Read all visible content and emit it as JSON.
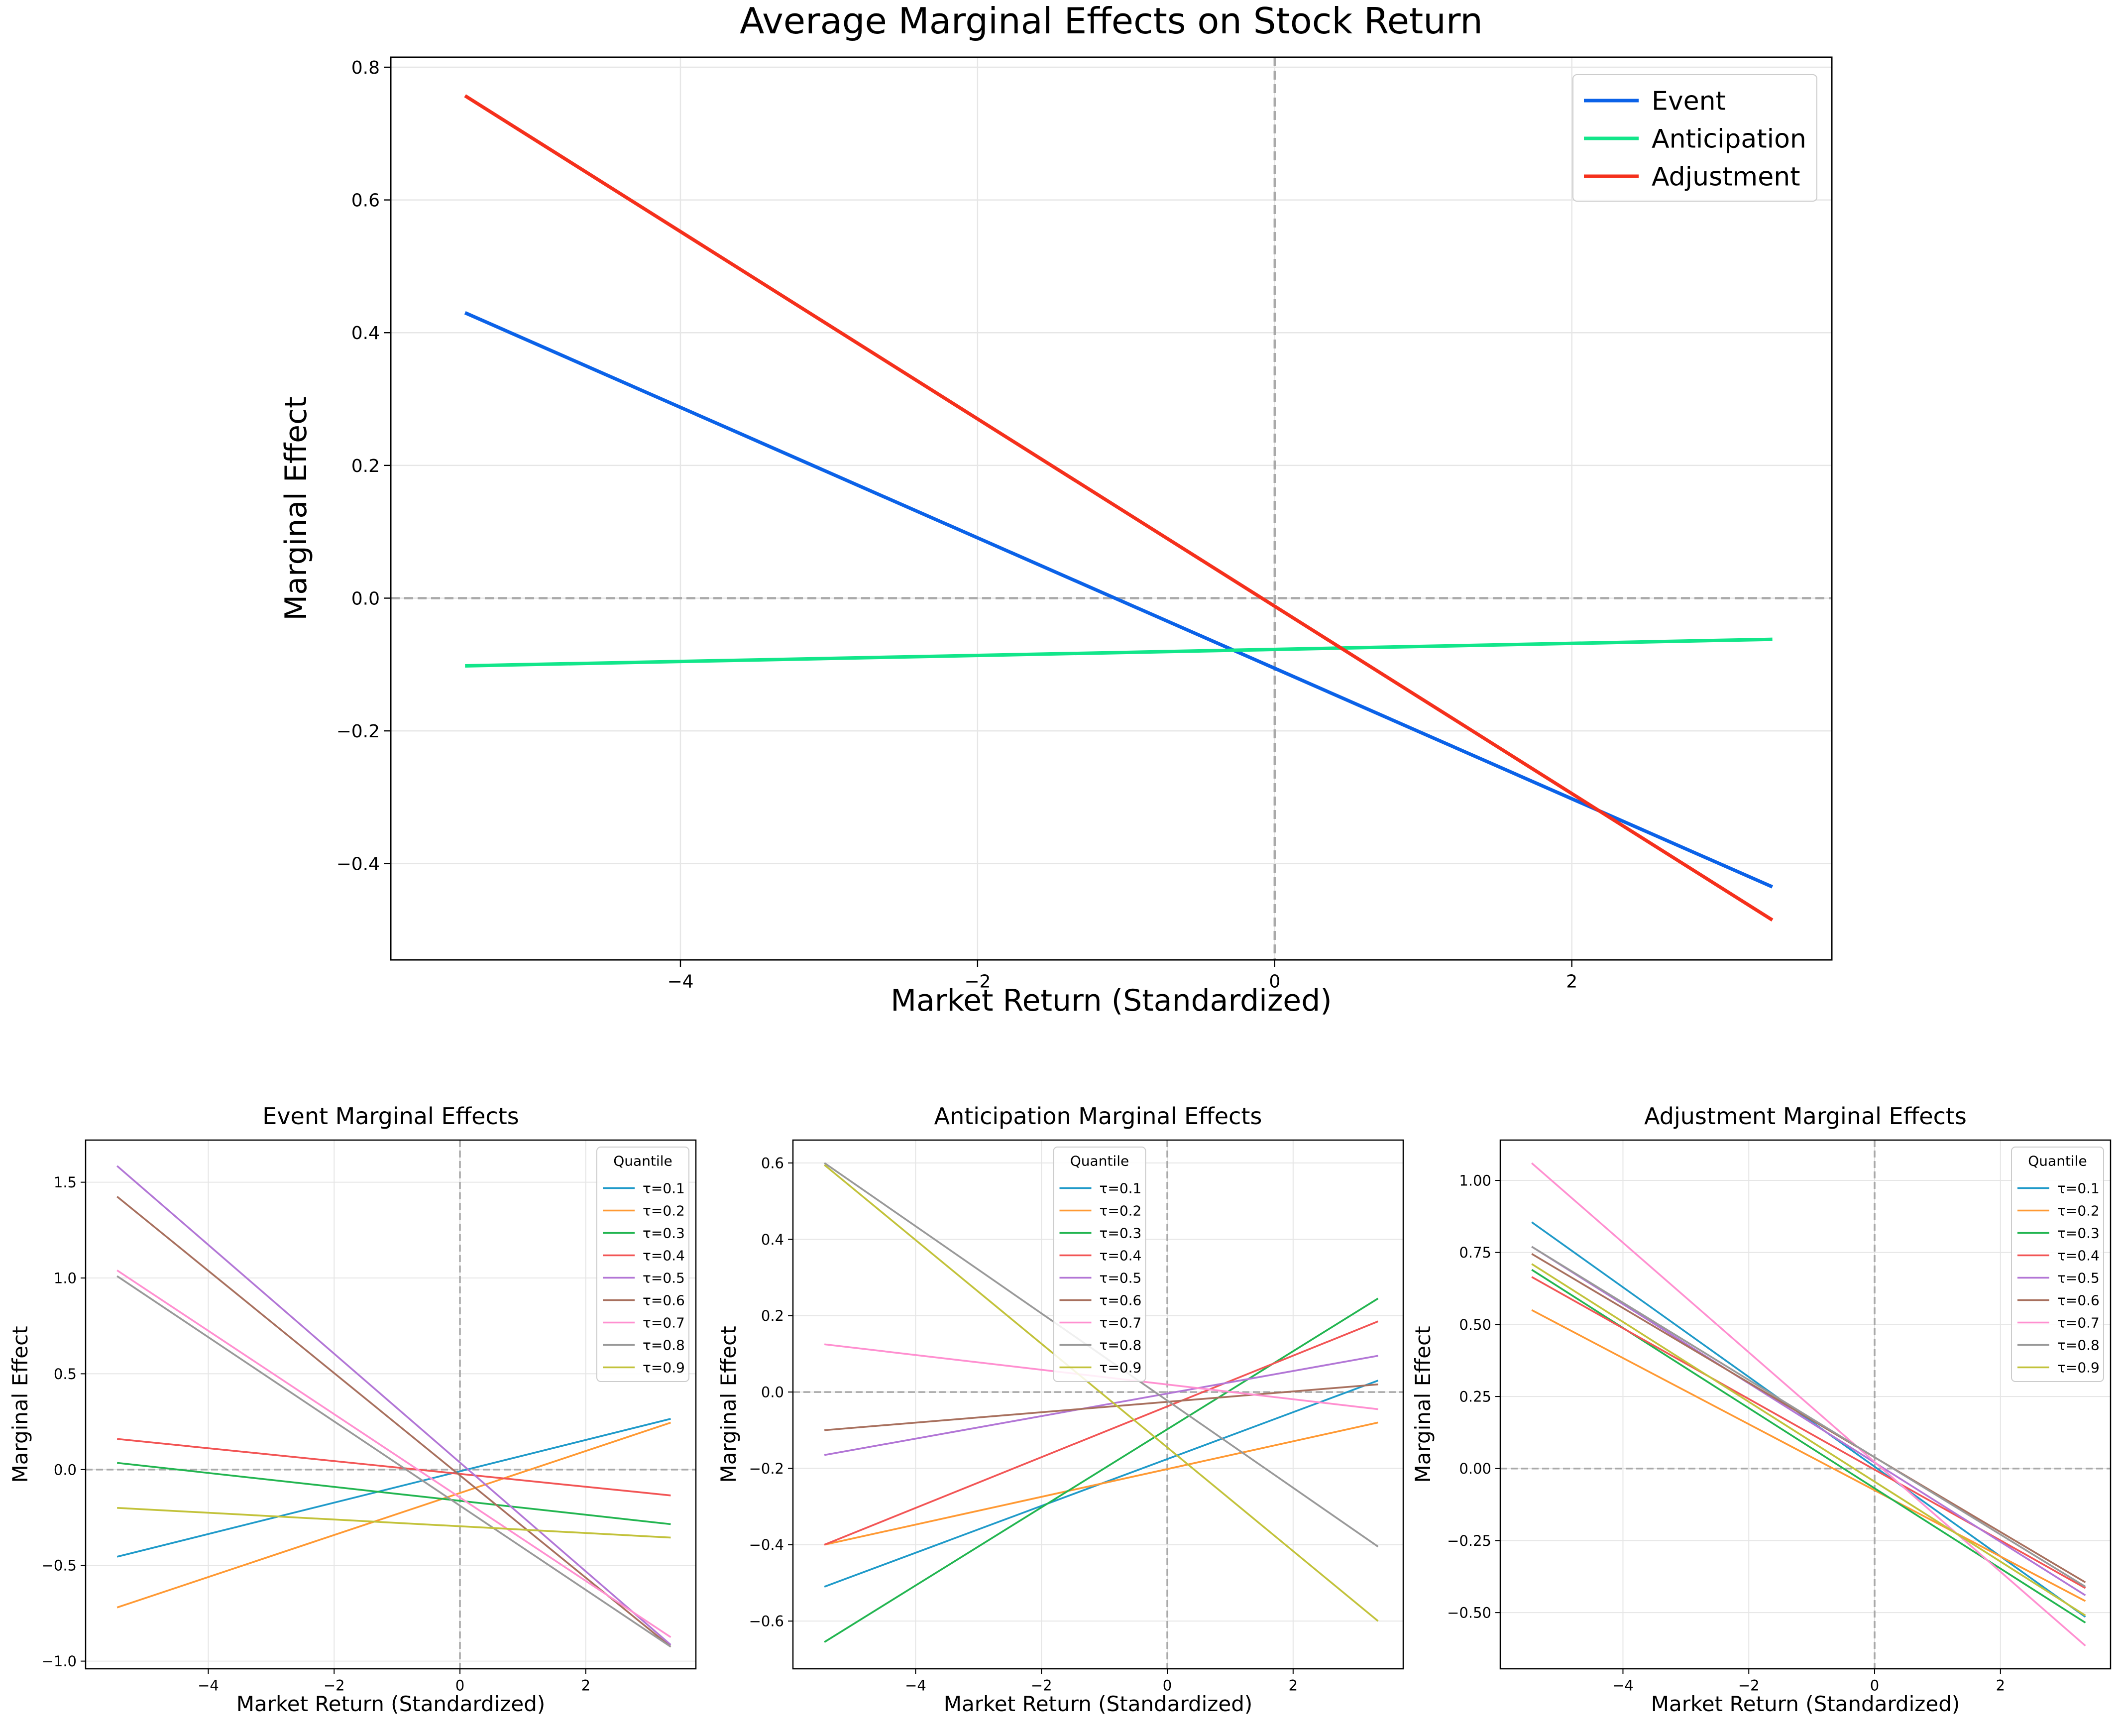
{
  "chart_data": [
    {
      "type": "line",
      "title": "Average Marginal Effects on Stock Return",
      "xlabel": "Market Return (Standardized)",
      "ylabel": "Marginal Effect",
      "xlim": [
        -5.95,
        3.75
      ],
      "ylim": [
        -0.545,
        0.815
      ],
      "xticks": [
        -4,
        -2,
        0,
        2
      ],
      "xtick_labels": [
        "−4",
        "−2",
        "0",
        "2"
      ],
      "yticks": [
        -0.4,
        -0.2,
        0.0,
        0.2,
        0.4,
        0.6,
        0.8
      ],
      "ytick_labels": [
        "−0.4",
        "−0.2",
        "0.0",
        "0.2",
        "0.4",
        "0.6",
        "0.8"
      ],
      "grid": true,
      "reference_lines": {
        "x": 0,
        "y": 0
      },
      "legend": {
        "placement": "top-right",
        "title": ""
      },
      "series": [
        {
          "name": "Event",
          "color": "#0b62e8",
          "x": [
            -5.45,
            3.35
          ],
          "y": [
            0.43,
            -0.435
          ]
        },
        {
          "name": "Anticipation",
          "color": "#12e68a",
          "x": [
            -5.45,
            3.35
          ],
          "y": [
            -0.102,
            -0.062
          ]
        },
        {
          "name": "Adjustment",
          "color": "#f5301c",
          "x": [
            -5.45,
            3.35
          ],
          "y": [
            0.757,
            -0.485
          ]
        }
      ]
    },
    {
      "type": "line",
      "title": "Event Marginal Effects",
      "xlabel": "Market Return (Standardized)",
      "ylabel": "Marginal Effect",
      "xlim": [
        -5.95,
        3.75
      ],
      "ylim": [
        -1.04,
        1.72
      ],
      "xticks": [
        -4,
        -2,
        0,
        2
      ],
      "xtick_labels": [
        "−4",
        "−2",
        "0",
        "2"
      ],
      "yticks": [
        -1.0,
        -0.5,
        0.0,
        0.5,
        1.0,
        1.5
      ],
      "ytick_labels": [
        "−1.0",
        "−0.5",
        "0.0",
        "0.5",
        "1.0",
        "1.5"
      ],
      "grid": true,
      "reference_lines": {
        "x": 0,
        "y": 0
      },
      "legend": {
        "placement": "top-right",
        "title": "Quantile"
      },
      "series": [
        {
          "name": "τ=0.1",
          "color": "#1f9ac9",
          "x": [
            -5.45,
            3.35
          ],
          "y": [
            -0.455,
            0.265
          ]
        },
        {
          "name": "τ=0.2",
          "color": "#ff9933",
          "x": [
            -5.45,
            3.35
          ],
          "y": [
            -0.72,
            0.245
          ]
        },
        {
          "name": "τ=0.3",
          "color": "#22b550",
          "x": [
            -5.45,
            3.35
          ],
          "y": [
            0.035,
            -0.285
          ]
        },
        {
          "name": "τ=0.4",
          "color": "#f25555",
          "x": [
            -5.45,
            3.35
          ],
          "y": [
            0.16,
            -0.135
          ]
        },
        {
          "name": "τ=0.5",
          "color": "#b276d6",
          "x": [
            -5.45,
            3.35
          ],
          "y": [
            1.585,
            -0.915
          ]
        },
        {
          "name": "τ=0.6",
          "color": "#a8705e",
          "x": [
            -5.45,
            3.35
          ],
          "y": [
            1.425,
            -0.925
          ]
        },
        {
          "name": "τ=0.7",
          "color": "#ff8fd0",
          "x": [
            -5.45,
            3.35
          ],
          "y": [
            1.04,
            -0.875
          ]
        },
        {
          "name": "τ=0.8",
          "color": "#999999",
          "x": [
            -5.45,
            3.35
          ],
          "y": [
            1.01,
            -0.925
          ]
        },
        {
          "name": "τ=0.9",
          "color": "#c2c23a",
          "x": [
            -5.45,
            3.35
          ],
          "y": [
            -0.2,
            -0.355
          ]
        }
      ]
    },
    {
      "type": "line",
      "title": "Anticipation Marginal Effects",
      "xlabel": "Market Return (Standardized)",
      "ylabel": "Marginal Effect",
      "xlim": [
        -5.95,
        3.75
      ],
      "ylim": [
        -0.725,
        0.66
      ],
      "xticks": [
        -4,
        -2,
        0,
        2
      ],
      "xtick_labels": [
        "−4",
        "−2",
        "0",
        "2"
      ],
      "yticks": [
        -0.6,
        -0.4,
        -0.2,
        0.0,
        0.2,
        0.4,
        0.6
      ],
      "ytick_labels": [
        "−0.6",
        "−0.4",
        "−0.2",
        "0.0",
        "0.2",
        "0.4",
        "0.6"
      ],
      "grid": true,
      "reference_lines": {
        "x": 0,
        "y": 0
      },
      "legend": {
        "placement": "upper-center",
        "title": "Quantile"
      },
      "series": [
        {
          "name": "τ=0.1",
          "color": "#1f9ac9",
          "x": [
            -5.45,
            3.35
          ],
          "y": [
            -0.51,
            0.03
          ]
        },
        {
          "name": "τ=0.2",
          "color": "#ff9933",
          "x": [
            -5.45,
            3.35
          ],
          "y": [
            -0.4,
            -0.08
          ]
        },
        {
          "name": "τ=0.3",
          "color": "#22b550",
          "x": [
            -5.45,
            3.35
          ],
          "y": [
            -0.655,
            0.245
          ]
        },
        {
          "name": "τ=0.4",
          "color": "#f25555",
          "x": [
            -5.45,
            3.35
          ],
          "y": [
            -0.4,
            0.185
          ]
        },
        {
          "name": "τ=0.5",
          "color": "#b276d6",
          "x": [
            -5.45,
            3.35
          ],
          "y": [
            -0.165,
            0.095
          ]
        },
        {
          "name": "τ=0.6",
          "color": "#a8705e",
          "x": [
            -5.45,
            3.35
          ],
          "y": [
            -0.1,
            0.02
          ]
        },
        {
          "name": "τ=0.7",
          "color": "#ff8fd0",
          "x": [
            -5.45,
            3.35
          ],
          "y": [
            0.125,
            -0.045
          ]
        },
        {
          "name": "τ=0.8",
          "color": "#999999",
          "x": [
            -5.45,
            3.35
          ],
          "y": [
            0.6,
            -0.405
          ]
        },
        {
          "name": "τ=0.9",
          "color": "#c2c23a",
          "x": [
            -5.45,
            3.35
          ],
          "y": [
            0.595,
            -0.6
          ]
        }
      ]
    },
    {
      "type": "line",
      "title": "Adjustment Marginal Effects",
      "xlabel": "Market Return (Standardized)",
      "ylabel": "Marginal Effect",
      "xlim": [
        -5.95,
        3.75
      ],
      "ylim": [
        -0.695,
        1.14
      ],
      "xticks": [
        -4,
        -2,
        0,
        2
      ],
      "xtick_labels": [
        "−4",
        "−2",
        "0",
        "2"
      ],
      "yticks": [
        -0.5,
        -0.25,
        0.0,
        0.25,
        0.5,
        0.75,
        1.0
      ],
      "ytick_labels": [
        "−0.50",
        "−0.25",
        "0.00",
        "0.25",
        "0.50",
        "0.75",
        "1.00"
      ],
      "grid": true,
      "reference_lines": {
        "x": 0,
        "y": 0
      },
      "legend": {
        "placement": "top-right",
        "title": "Quantile"
      },
      "series": [
        {
          "name": "τ=0.1",
          "color": "#1f9ac9",
          "x": [
            -5.45,
            3.35
          ],
          "y": [
            0.855,
            -0.515
          ]
        },
        {
          "name": "τ=0.2",
          "color": "#ff9933",
          "x": [
            -5.45,
            3.35
          ],
          "y": [
            0.55,
            -0.46
          ]
        },
        {
          "name": "τ=0.3",
          "color": "#22b550",
          "x": [
            -5.45,
            3.35
          ],
          "y": [
            0.69,
            -0.535
          ]
        },
        {
          "name": "τ=0.4",
          "color": "#f25555",
          "x": [
            -5.45,
            3.35
          ],
          "y": [
            0.665,
            -0.415
          ]
        },
        {
          "name": "τ=0.5",
          "color": "#b276d6",
          "x": [
            -5.45,
            3.35
          ],
          "y": [
            0.77,
            -0.44
          ]
        },
        {
          "name": "τ=0.6",
          "color": "#a8705e",
          "x": [
            -5.45,
            3.35
          ],
          "y": [
            0.745,
            -0.395
          ]
        },
        {
          "name": "τ=0.7",
          "color": "#ff8fd0",
          "x": [
            -5.45,
            3.35
          ],
          "y": [
            1.06,
            -0.615
          ]
        },
        {
          "name": "τ=0.8",
          "color": "#999999",
          "x": [
            -5.45,
            3.35
          ],
          "y": [
            0.77,
            -0.41
          ]
        },
        {
          "name": "τ=0.9",
          "color": "#c2c23a",
          "x": [
            -5.45,
            3.35
          ],
          "y": [
            0.71,
            -0.51
          ]
        }
      ]
    }
  ]
}
